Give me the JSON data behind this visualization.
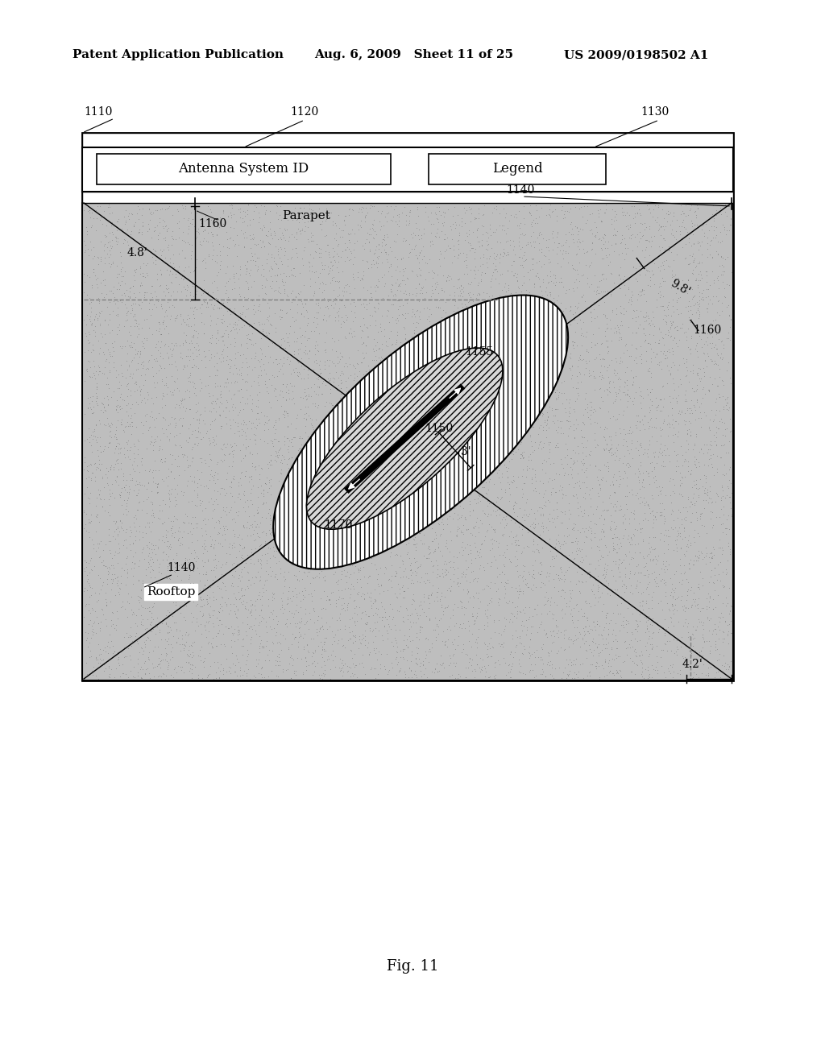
{
  "bg_color": "#ffffff",
  "header_text_left": "Patent Application Publication",
  "header_text_mid": "Aug. 6, 2009   Sheet 11 of 25",
  "header_text_right": "US 2009/0198502 A1",
  "fig_label": "Fig. 11",
  "label_1110": "1110",
  "label_1120": "1120",
  "label_1130": "1130",
  "label_1140_top": "1140",
  "label_1140_bot": "1140",
  "label_1150": "1150",
  "label_1155": "1155",
  "label_1160_left": "1160",
  "label_1160_right": "1160",
  "label_1170": "1170",
  "text_antenna": "Antenna System ID",
  "text_legend": "Legend",
  "text_parapet": "Parapet",
  "text_rooftop": "Rooftop",
  "text_4_8": "4.8'",
  "text_9_8": "9.8'",
  "text_4_2": "4.2'",
  "text_3": "3'",
  "stipple_color": "#c0c0c0",
  "outer_ellipse_facecolor": "#ffffff",
  "inner_ellipse_facecolor": "#e0e0e0"
}
